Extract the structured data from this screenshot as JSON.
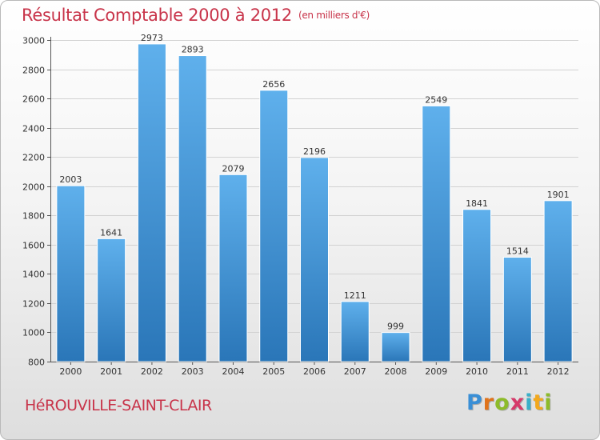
{
  "chart_data": {
    "type": "bar",
    "title": "Résultat Comptable 2000 à 2012",
    "unit_label": "(en milliers d'€)",
    "categories": [
      "2000",
      "2001",
      "2002",
      "2003",
      "2004",
      "2005",
      "2006",
      "2007",
      "2008",
      "2009",
      "2010",
      "2011",
      "2012"
    ],
    "values": [
      2003,
      1641,
      2973,
      2893,
      2079,
      2656,
      2196,
      1211,
      999,
      2549,
      1841,
      1514,
      1901
    ],
    "ylim": [
      800,
      3000
    ],
    "yticks": [
      800,
      1000,
      1200,
      1400,
      1600,
      1800,
      2000,
      2200,
      2400,
      2600,
      2800,
      3000
    ],
    "xlabel": "",
    "ylabel": "",
    "grid": true,
    "bar_color": "#3d8fd3"
  },
  "location": "HéROUVILLE-SAINT-CLAIR",
  "logo": {
    "letters": [
      "P",
      "r",
      "o",
      "x",
      "i",
      "t",
      "i"
    ],
    "colors": [
      "#3a8fd6",
      "#e0731b",
      "#8dbb2a",
      "#d63a6a",
      "#3ab0c9",
      "#f2a81d",
      "#8dbb2a"
    ]
  }
}
